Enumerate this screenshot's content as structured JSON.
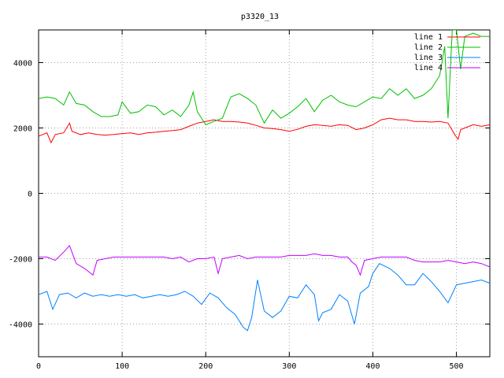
{
  "chart_data": {
    "type": "line",
    "title": "p3320_13",
    "xlabel": "",
    "ylabel": "",
    "xlim": [
      0,
      540
    ],
    "ylim": [
      -5000,
      5000
    ],
    "x_ticks": [
      0,
      100,
      200,
      300,
      400,
      500
    ],
    "y_ticks": [
      -4000,
      -2000,
      0,
      2000,
      4000
    ],
    "grid": true,
    "legend_position": "top-right",
    "series": [
      {
        "name": "line 1",
        "color": "#ff0000",
        "points": [
          [
            0,
            1750
          ],
          [
            5,
            1800
          ],
          [
            10,
            1850
          ],
          [
            15,
            1550
          ],
          [
            20,
            1800
          ],
          [
            30,
            1850
          ],
          [
            37,
            2150
          ],
          [
            40,
            1900
          ],
          [
            50,
            1800
          ],
          [
            60,
            1850
          ],
          [
            70,
            1800
          ],
          [
            80,
            1780
          ],
          [
            90,
            1800
          ],
          [
            100,
            1830
          ],
          [
            110,
            1850
          ],
          [
            120,
            1800
          ],
          [
            130,
            1850
          ],
          [
            140,
            1870
          ],
          [
            150,
            1900
          ],
          [
            160,
            1920
          ],
          [
            170,
            1950
          ],
          [
            180,
            2050
          ],
          [
            190,
            2150
          ],
          [
            200,
            2200
          ],
          [
            210,
            2250
          ],
          [
            220,
            2200
          ],
          [
            230,
            2200
          ],
          [
            240,
            2180
          ],
          [
            250,
            2150
          ],
          [
            260,
            2080
          ],
          [
            270,
            2000
          ],
          [
            280,
            1980
          ],
          [
            290,
            1950
          ],
          [
            300,
            1900
          ],
          [
            310,
            1960
          ],
          [
            320,
            2050
          ],
          [
            330,
            2100
          ],
          [
            340,
            2080
          ],
          [
            350,
            2050
          ],
          [
            360,
            2100
          ],
          [
            370,
            2080
          ],
          [
            380,
            1950
          ],
          [
            390,
            2000
          ],
          [
            400,
            2100
          ],
          [
            410,
            2250
          ],
          [
            420,
            2300
          ],
          [
            430,
            2250
          ],
          [
            440,
            2250
          ],
          [
            450,
            2200
          ],
          [
            460,
            2200
          ],
          [
            470,
            2180
          ],
          [
            480,
            2200
          ],
          [
            490,
            2150
          ],
          [
            498,
            1800
          ],
          [
            502,
            1650
          ],
          [
            505,
            1950
          ],
          [
            510,
            2000
          ],
          [
            520,
            2100
          ],
          [
            530,
            2050
          ],
          [
            540,
            2100
          ]
        ]
      },
      {
        "name": "line 2",
        "color": "#00c000",
        "points": [
          [
            0,
            2900
          ],
          [
            10,
            2950
          ],
          [
            20,
            2900
          ],
          [
            30,
            2700
          ],
          [
            37,
            3100
          ],
          [
            45,
            2750
          ],
          [
            55,
            2700
          ],
          [
            65,
            2500
          ],
          [
            75,
            2350
          ],
          [
            85,
            2350
          ],
          [
            95,
            2400
          ],
          [
            100,
            2800
          ],
          [
            110,
            2450
          ],
          [
            120,
            2500
          ],
          [
            130,
            2700
          ],
          [
            140,
            2650
          ],
          [
            150,
            2400
          ],
          [
            160,
            2550
          ],
          [
            170,
            2350
          ],
          [
            180,
            2700
          ],
          [
            185,
            3100
          ],
          [
            190,
            2500
          ],
          [
            200,
            2100
          ],
          [
            210,
            2200
          ],
          [
            220,
            2300
          ],
          [
            230,
            2950
          ],
          [
            240,
            3050
          ],
          [
            250,
            2900
          ],
          [
            260,
            2700
          ],
          [
            270,
            2150
          ],
          [
            280,
            2550
          ],
          [
            290,
            2300
          ],
          [
            300,
            2450
          ],
          [
            310,
            2650
          ],
          [
            320,
            2900
          ],
          [
            330,
            2500
          ],
          [
            340,
            2850
          ],
          [
            350,
            3000
          ],
          [
            360,
            2800
          ],
          [
            370,
            2700
          ],
          [
            380,
            2650
          ],
          [
            390,
            2800
          ],
          [
            400,
            2950
          ],
          [
            410,
            2900
          ],
          [
            420,
            3200
          ],
          [
            430,
            3000
          ],
          [
            440,
            3200
          ],
          [
            450,
            2900
          ],
          [
            460,
            3000
          ],
          [
            470,
            3200
          ],
          [
            480,
            3600
          ],
          [
            486,
            4500
          ],
          [
            490,
            2300
          ],
          [
            495,
            5000
          ],
          [
            500,
            5000
          ],
          [
            505,
            3800
          ],
          [
            510,
            4800
          ],
          [
            520,
            4900
          ],
          [
            530,
            4800
          ],
          [
            540,
            4800
          ]
        ]
      },
      {
        "name": "line 3",
        "color": "#0080ff",
        "points": [
          [
            0,
            -3100
          ],
          [
            10,
            -3000
          ],
          [
            17,
            -3550
          ],
          [
            25,
            -3100
          ],
          [
            35,
            -3050
          ],
          [
            45,
            -3200
          ],
          [
            55,
            -3050
          ],
          [
            65,
            -3150
          ],
          [
            75,
            -3100
          ],
          [
            85,
            -3150
          ],
          [
            95,
            -3100
          ],
          [
            105,
            -3150
          ],
          [
            115,
            -3100
          ],
          [
            125,
            -3200
          ],
          [
            135,
            -3150
          ],
          [
            145,
            -3100
          ],
          [
            155,
            -3150
          ],
          [
            165,
            -3100
          ],
          [
            175,
            -3000
          ],
          [
            185,
            -3150
          ],
          [
            195,
            -3400
          ],
          [
            205,
            -3050
          ],
          [
            215,
            -3200
          ],
          [
            225,
            -3500
          ],
          [
            235,
            -3700
          ],
          [
            245,
            -4100
          ],
          [
            250,
            -4200
          ],
          [
            255,
            -3800
          ],
          [
            262,
            -2650
          ],
          [
            270,
            -3600
          ],
          [
            280,
            -3800
          ],
          [
            290,
            -3600
          ],
          [
            300,
            -3150
          ],
          [
            310,
            -3200
          ],
          [
            320,
            -2800
          ],
          [
            330,
            -3100
          ],
          [
            335,
            -3900
          ],
          [
            340,
            -3650
          ],
          [
            350,
            -3550
          ],
          [
            360,
            -3100
          ],
          [
            370,
            -3300
          ],
          [
            378,
            -4000
          ],
          [
            385,
            -3050
          ],
          [
            395,
            -2850
          ],
          [
            400,
            -2450
          ],
          [
            408,
            -2150
          ],
          [
            420,
            -2300
          ],
          [
            430,
            -2500
          ],
          [
            440,
            -2800
          ],
          [
            450,
            -2800
          ],
          [
            460,
            -2450
          ],
          [
            470,
            -2700
          ],
          [
            480,
            -3000
          ],
          [
            490,
            -3350
          ],
          [
            500,
            -2800
          ],
          [
            510,
            -2750
          ],
          [
            520,
            -2700
          ],
          [
            530,
            -2650
          ],
          [
            540,
            -2750
          ]
        ]
      },
      {
        "name": "line 4",
        "color": "#c000ff",
        "points": [
          [
            0,
            -1950
          ],
          [
            10,
            -1950
          ],
          [
            20,
            -2050
          ],
          [
            30,
            -1800
          ],
          [
            37,
            -1600
          ],
          [
            45,
            -2150
          ],
          [
            55,
            -2300
          ],
          [
            65,
            -2500
          ],
          [
            70,
            -2050
          ],
          [
            80,
            -2000
          ],
          [
            90,
            -1950
          ],
          [
            100,
            -1950
          ],
          [
            110,
            -1950
          ],
          [
            120,
            -1950
          ],
          [
            130,
            -1950
          ],
          [
            140,
            -1950
          ],
          [
            150,
            -1950
          ],
          [
            160,
            -2000
          ],
          [
            170,
            -1950
          ],
          [
            180,
            -2100
          ],
          [
            190,
            -2000
          ],
          [
            200,
            -2000
          ],
          [
            210,
            -1950
          ],
          [
            215,
            -2450
          ],
          [
            220,
            -2000
          ],
          [
            230,
            -1950
          ],
          [
            240,
            -1900
          ],
          [
            250,
            -2000
          ],
          [
            260,
            -1950
          ],
          [
            270,
            -1950
          ],
          [
            280,
            -1950
          ],
          [
            290,
            -1950
          ],
          [
            300,
            -1900
          ],
          [
            310,
            -1900
          ],
          [
            320,
            -1900
          ],
          [
            330,
            -1850
          ],
          [
            340,
            -1900
          ],
          [
            350,
            -1900
          ],
          [
            360,
            -1950
          ],
          [
            370,
            -1950
          ],
          [
            375,
            -2100
          ],
          [
            380,
            -2200
          ],
          [
            385,
            -2500
          ],
          [
            390,
            -2050
          ],
          [
            400,
            -2000
          ],
          [
            410,
            -1950
          ],
          [
            420,
            -1950
          ],
          [
            430,
            -1950
          ],
          [
            440,
            -1950
          ],
          [
            450,
            -2050
          ],
          [
            460,
            -2100
          ],
          [
            470,
            -2100
          ],
          [
            480,
            -2100
          ],
          [
            490,
            -2050
          ],
          [
            500,
            -2100
          ],
          [
            510,
            -2150
          ],
          [
            520,
            -2100
          ],
          [
            530,
            -2150
          ],
          [
            540,
            -2250
          ]
        ]
      }
    ]
  }
}
